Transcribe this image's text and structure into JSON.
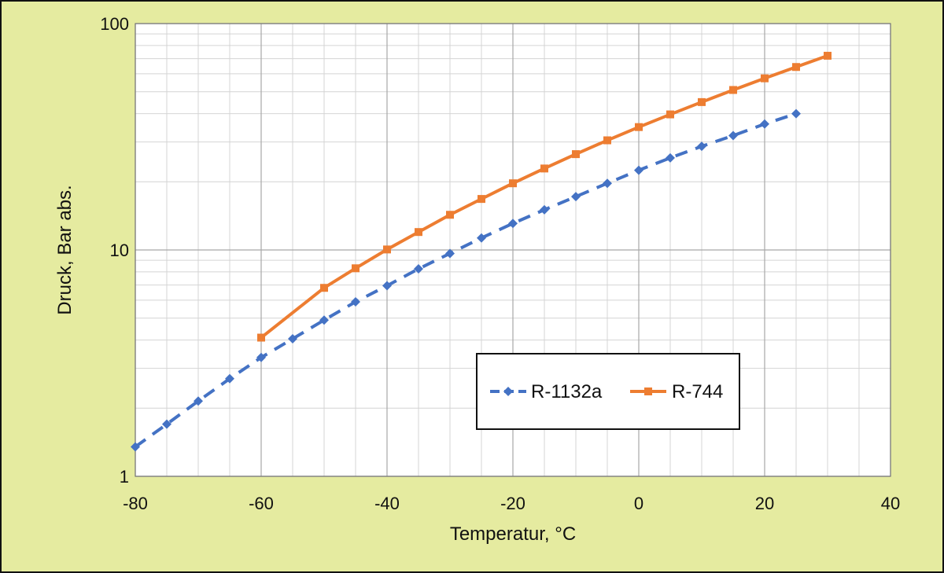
{
  "chart_data": {
    "type": "line",
    "xlabel": "Temperatur, °C",
    "ylabel": "Druck, Bar abs.",
    "xlim": [
      -80,
      40
    ],
    "ylim": [
      1,
      100
    ],
    "y_scale": "log",
    "x_ticks": [
      -80,
      -60,
      -40,
      -20,
      0,
      20,
      40
    ],
    "x_tick_labels": [
      "-80",
      "-60",
      "-40",
      "-20",
      "0",
      "20",
      "40"
    ],
    "y_ticks": [
      1,
      10,
      100
    ],
    "y_tick_labels": [
      "1",
      "10",
      "100"
    ],
    "grid": true,
    "legend_position": "lower-right",
    "background_color": "#e5eba0",
    "plot_background": "#ffffff",
    "series": [
      {
        "name": "R-1132a",
        "color": "#4472c4",
        "line_style": "dashed",
        "marker": "diamond",
        "x": [
          -80,
          -75,
          -70,
          -65,
          -60,
          -55,
          -50,
          -45,
          -40,
          -35,
          -30,
          -25,
          -20,
          -15,
          -10,
          -5,
          0,
          5,
          10,
          15,
          20,
          25
        ],
        "y": [
          1.35,
          1.7,
          2.15,
          2.7,
          3.35,
          4.05,
          4.9,
          5.9,
          6.95,
          8.25,
          9.65,
          11.3,
          13.1,
          15.05,
          17.2,
          19.7,
          22.5,
          25.5,
          28.7,
          32.0,
          36.0,
          40.0
        ]
      },
      {
        "name": "R-744",
        "color": "#ed7d31",
        "line_style": "solid",
        "marker": "square",
        "x": [
          -60,
          -50,
          -45,
          -40,
          -35,
          -30,
          -25,
          -20,
          -15,
          -10,
          -5,
          0,
          5,
          10,
          15,
          20,
          25,
          30
        ],
        "y": [
          4.1,
          6.8,
          8.3,
          10.05,
          12.0,
          14.3,
          16.8,
          19.7,
          22.9,
          26.5,
          30.5,
          34.9,
          39.7,
          45.0,
          50.9,
          57.3,
          64.3,
          72.1
        ]
      }
    ]
  }
}
